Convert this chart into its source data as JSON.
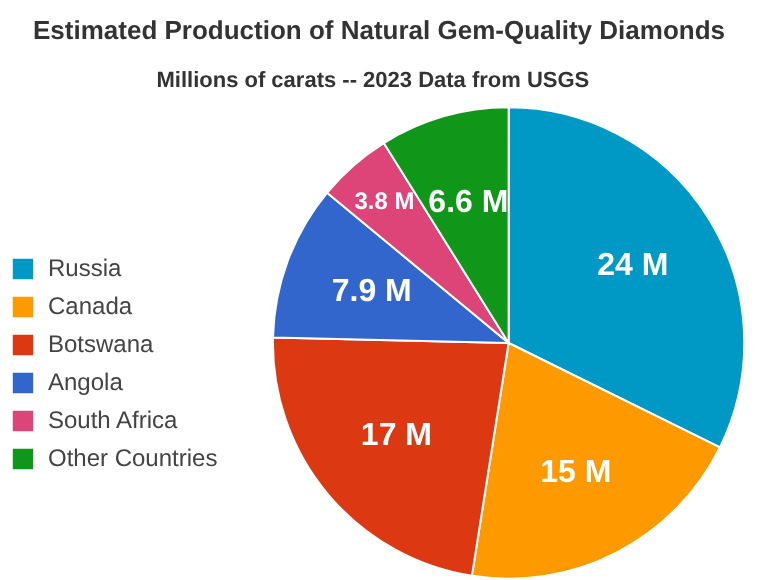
{
  "chart_data": {
    "type": "pie",
    "title": "Estimated Production of Natural Gem-Quality Diamonds",
    "subtitle": "Millions of carats  --  2023 Data from USGS",
    "categories": [
      "Russia",
      "Canada",
      "Botswana",
      "Angola",
      "South Africa",
      "Other Countries"
    ],
    "values": [
      24,
      15,
      17,
      7.9,
      3.8,
      6.6
    ],
    "colors": [
      "#0099c6",
      "#ff9900",
      "#dc3912",
      "#3366cc",
      "#dd4477",
      "#109618"
    ],
    "value_labels": [
      "24 M",
      "15 M",
      "17 M",
      "7.9 M",
      "3.8 M",
      "6.6 M"
    ],
    "legend": "left"
  }
}
